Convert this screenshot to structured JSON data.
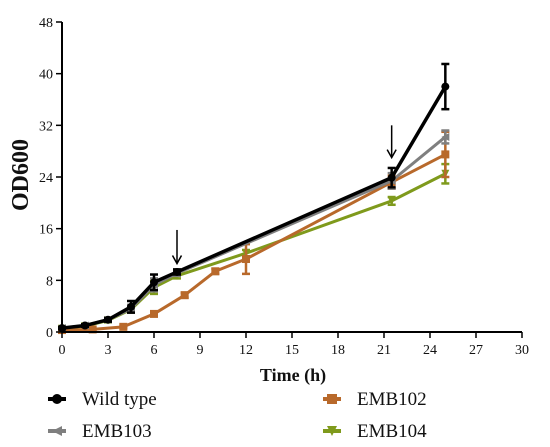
{
  "chart_data": {
    "type": "line",
    "xlabel": "Time (h)",
    "ylabel": "OD600",
    "xlim": [
      0,
      30
    ],
    "ylim": [
      0,
      48
    ],
    "xticks": [
      0,
      3,
      6,
      9,
      12,
      15,
      18,
      21,
      24,
      27,
      30
    ],
    "yticks": [
      0,
      8,
      16,
      24,
      32,
      40,
      48
    ],
    "grid": false,
    "legend_position": "bottom",
    "annotations": [
      {
        "type": "arrow-down",
        "x": 7.5,
        "y_from": 15.8,
        "y_to": 10.6
      },
      {
        "type": "arrow-down",
        "x": 21.5,
        "y_from": 32.0,
        "y_to": 27.0
      }
    ],
    "series": [
      {
        "name": "Wild type",
        "color": "#000000",
        "marker": "circle",
        "line_width": 3.5,
        "x": [
          0,
          1.5,
          3,
          4.5,
          6,
          7.5,
          21.5,
          25
        ],
        "y": [
          0.6,
          1.0,
          1.9,
          3.9,
          7.7,
          9.3,
          23.9,
          38.0
        ],
        "err": [
          0.2,
          0.2,
          0.3,
          0.9,
          1.2,
          0.4,
          1.5,
          3.5
        ]
      },
      {
        "name": "EMB102",
        "color": "#B8692B",
        "marker": "square",
        "line_width": 3,
        "x": [
          0,
          2,
          4,
          6,
          8,
          10,
          12,
          21.5,
          25
        ],
        "y": [
          0.3,
          0.4,
          0.8,
          2.8,
          5.7,
          9.4,
          11.3,
          23.2,
          27.5
        ],
        "err": [
          0.1,
          0.1,
          0.2,
          0.3,
          0.4,
          0.4,
          2.3,
          1.0,
          3.5
        ]
      },
      {
        "name": "EMB103",
        "color": "#7F7F7F",
        "marker": "triangle-left",
        "line_width": 3,
        "x": [
          0,
          1.5,
          3,
          4.5,
          6,
          7.5,
          21.5,
          25
        ],
        "y": [
          0.6,
          1.0,
          1.9,
          3.6,
          7.3,
          9.1,
          23.4,
          30.2
        ],
        "err": [
          0.1,
          0.1,
          0.3,
          0.6,
          1.0,
          0.4,
          1.2,
          1.0
        ]
      },
      {
        "name": "EMB104",
        "color": "#7F9A1C",
        "marker": "triangle-down",
        "line_width": 3,
        "x": [
          0,
          1.5,
          3,
          4.5,
          6,
          7.5,
          12,
          21.5,
          25
        ],
        "y": [
          0.5,
          0.9,
          1.8,
          3.5,
          6.9,
          8.7,
          12.2,
          20.3,
          24.5
        ],
        "err": [
          0.1,
          0.1,
          0.3,
          0.5,
          1.0,
          0.4,
          0.5,
          0.6,
          1.5
        ]
      }
    ]
  }
}
